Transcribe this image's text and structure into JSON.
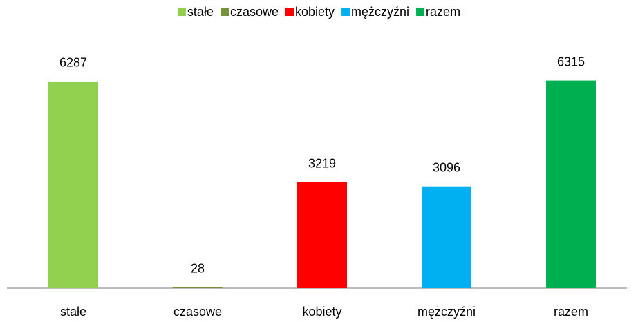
{
  "chart_data": {
    "type": "bar",
    "categories": [
      "stałe",
      "czasowe",
      "kobiety",
      "mężczyźni",
      "razem"
    ],
    "values": [
      6287,
      28,
      3219,
      3096,
      6315
    ],
    "colors": [
      "#92d050",
      "#76923c",
      "#ff0000",
      "#00b0f0",
      "#00b050"
    ],
    "ylim": [
      0,
      7000
    ],
    "legend": "top"
  }
}
